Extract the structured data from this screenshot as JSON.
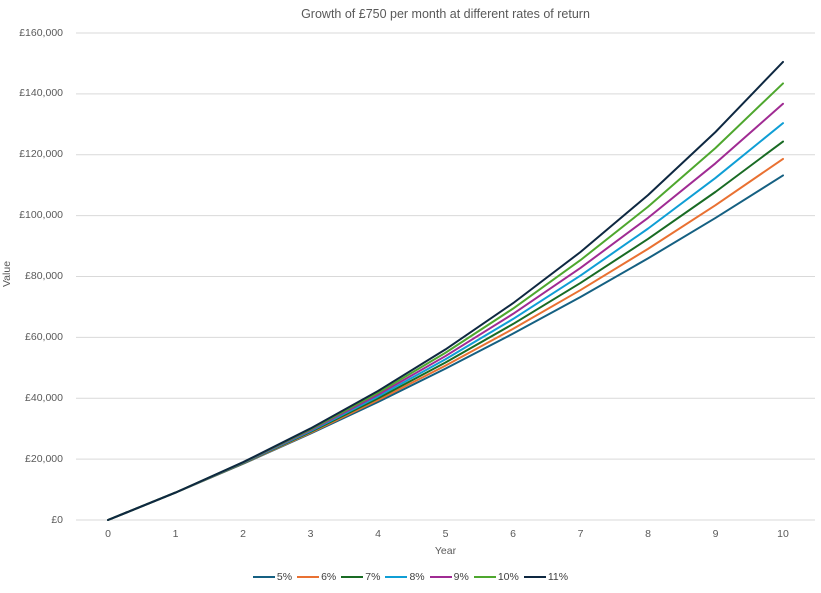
{
  "chart_data": {
    "type": "line",
    "title": "Growth of £750 per month at different rates of return",
    "xlabel": "Year",
    "ylabel": "Value",
    "x": [
      0,
      1,
      2,
      3,
      4,
      5,
      6,
      7,
      8,
      9,
      10
    ],
    "x_tick_labels": [
      "0",
      "1",
      "2",
      "3",
      "4",
      "5",
      "6",
      "7",
      "8",
      "9",
      "10"
    ],
    "xlim": [
      0,
      10
    ],
    "ylim": [
      0,
      160000
    ],
    "y_tick_values": [
      0,
      20000,
      40000,
      60000,
      80000,
      100000,
      120000,
      140000,
      160000
    ],
    "y_tick_labels": [
      "£0",
      "£20,000",
      "£40,000",
      "£60,000",
      "£80,000",
      "£100,000",
      "£120,000",
      "£140,000",
      "£160,000"
    ],
    "grid": "horizontal",
    "grid_color": "#D9D9D9",
    "axis_text_color": "#595959",
    "legend_text_color": "#404040",
    "legend_position": "bottom",
    "series": [
      {
        "name": "5%",
        "color": "#156082",
        "values": [
          0,
          9000,
          18450,
          28373,
          38791,
          49731,
          61217,
          73278,
          85942,
          99239,
          113201
        ]
      },
      {
        "name": "6%",
        "color": "#E97132",
        "values": [
          0,
          9000,
          18540,
          28652,
          39372,
          50734,
          62778,
          75545,
          89077,
          103422,
          118627
        ]
      },
      {
        "name": "7%",
        "color": "#196B24",
        "values": [
          0,
          9000,
          18630,
          28934,
          39960,
          51757,
          64380,
          77886,
          92338,
          107802,
          124348
        ]
      },
      {
        "name": "8%",
        "color": "#0F9ED5",
        "values": [
          0,
          9000,
          18720,
          29218,
          40555,
          52799,
          66023,
          80305,
          95730,
          112388,
          130379
        ]
      },
      {
        "name": "9%",
        "color": "#A02B93",
        "values": [
          0,
          9000,
          18810,
          29503,
          41158,
          53862,
          67710,
          82804,
          99256,
          117189,
          136736
        ]
      },
      {
        "name": "10%",
        "color": "#4EA72E",
        "values": [
          0,
          9000,
          18900,
          29790,
          41769,
          54946,
          69440,
          85385,
          102923,
          122215,
          143437
        ]
      },
      {
        "name": "11%",
        "color": "#0E2841",
        "values": [
          0,
          9000,
          18990,
          30079,
          42388,
          56050,
          71216,
          88049,
          106735,
          127476,
          150498
        ]
      }
    ]
  }
}
